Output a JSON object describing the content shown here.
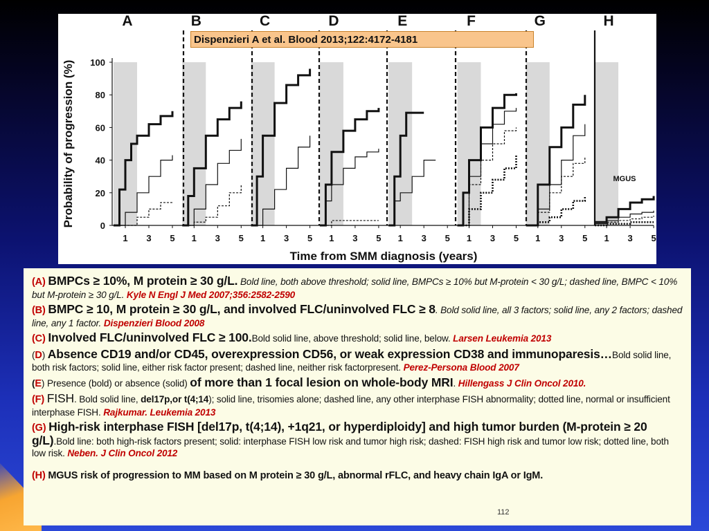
{
  "figure": {
    "panel_letters": [
      "A",
      "B",
      "C",
      "D",
      "E",
      "F",
      "G",
      "H"
    ],
    "citation": "Dispenzieri A et al. Blood 2013;122:4172-4181",
    "mgus_label": "MGUS"
  },
  "chart_data": {
    "type": "line",
    "xlabel": "Time from SMM diagnosis (years)",
    "ylabel": "Probability of progression (%)",
    "ylim": [
      0,
      100
    ],
    "y_ticks": [
      0,
      20,
      40,
      60,
      80,
      100
    ],
    "x_ticks": [
      1,
      3,
      5
    ],
    "xlim": [
      0,
      5
    ],
    "panels": [
      {
        "label": "A",
        "series": [
          {
            "style": "bold",
            "points": [
              [
                0,
                0
              ],
              [
                0.5,
                22
              ],
              [
                1,
                40
              ],
              [
                1.5,
                50
              ],
              [
                2,
                55
              ],
              [
                3,
                62
              ],
              [
                4,
                67
              ],
              [
                5,
                70
              ]
            ]
          },
          {
            "style": "solid",
            "points": [
              [
                0,
                0
              ],
              [
                1,
                8
              ],
              [
                2,
                20
              ],
              [
                3,
                30
              ],
              [
                4,
                40
              ],
              [
                5,
                43
              ]
            ]
          },
          {
            "style": "dashed",
            "points": [
              [
                0,
                0
              ],
              [
                2,
                5
              ],
              [
                3,
                10
              ],
              [
                4,
                14
              ],
              [
                5,
                14
              ]
            ]
          }
        ]
      },
      {
        "label": "B",
        "series": [
          {
            "style": "bold",
            "points": [
              [
                0,
                0
              ],
              [
                0.5,
                18
              ],
              [
                1,
                35
              ],
              [
                2,
                55
              ],
              [
                3,
                65
              ],
              [
                4,
                72
              ],
              [
                5,
                76
              ]
            ]
          },
          {
            "style": "solid",
            "points": [
              [
                0,
                0
              ],
              [
                1,
                10
              ],
              [
                2,
                25
              ],
              [
                3,
                38
              ],
              [
                4,
                46
              ],
              [
                5,
                53
              ]
            ]
          },
          {
            "style": "dashed",
            "points": [
              [
                0,
                0
              ],
              [
                1,
                2
              ],
              [
                2,
                5
              ],
              [
                3,
                12
              ],
              [
                4,
                20
              ],
              [
                5,
                25
              ]
            ]
          }
        ]
      },
      {
        "label": "C",
        "series": [
          {
            "style": "bold",
            "points": [
              [
                0,
                0
              ],
              [
                0.5,
                30
              ],
              [
                1,
                55
              ],
              [
                2,
                75
              ],
              [
                3,
                86
              ],
              [
                4,
                92
              ],
              [
                5,
                96
              ]
            ]
          },
          {
            "style": "solid",
            "points": [
              [
                0,
                0
              ],
              [
                1,
                10
              ],
              [
                2,
                22
              ],
              [
                3,
                35
              ],
              [
                4,
                48
              ],
              [
                5,
                55
              ]
            ]
          }
        ]
      },
      {
        "label": "D",
        "series": [
          {
            "style": "bold",
            "points": [
              [
                0,
                0
              ],
              [
                0.5,
                25
              ],
              [
                1,
                45
              ],
              [
                2,
                58
              ],
              [
                3,
                65
              ],
              [
                4,
                70
              ],
              [
                5,
                72
              ]
            ]
          },
          {
            "style": "solid",
            "points": [
              [
                0,
                0
              ],
              [
                0.5,
                15
              ],
              [
                1,
                25
              ],
              [
                2,
                35
              ],
              [
                3,
                42
              ],
              [
                4,
                45
              ],
              [
                5,
                47
              ]
            ]
          },
          {
            "style": "dashed",
            "points": [
              [
                0,
                0
              ],
              [
                1,
                3
              ],
              [
                2,
                3
              ],
              [
                5,
                3
              ]
            ]
          }
        ]
      },
      {
        "label": "E",
        "series": [
          {
            "style": "bold",
            "points": [
              [
                0,
                0
              ],
              [
                0.5,
                30
              ],
              [
                1,
                55
              ],
              [
                1.5,
                69
              ],
              [
                3,
                69
              ]
            ]
          },
          {
            "style": "solid",
            "points": [
              [
                0,
                0
              ],
              [
                0.5,
                15
              ],
              [
                1,
                20
              ],
              [
                2,
                30
              ],
              [
                3,
                40
              ],
              [
                4,
                40
              ]
            ]
          }
        ]
      },
      {
        "label": "F",
        "series": [
          {
            "style": "bold",
            "points": [
              [
                0,
                0
              ],
              [
                0.5,
                20
              ],
              [
                1,
                40
              ],
              [
                2,
                60
              ],
              [
                3,
                72
              ],
              [
                4,
                80
              ],
              [
                5,
                81
              ]
            ]
          },
          {
            "style": "solid",
            "points": [
              [
                0,
                0
              ],
              [
                1,
                30
              ],
              [
                2,
                50
              ],
              [
                3,
                62
              ],
              [
                4,
                70
              ],
              [
                5,
                72
              ]
            ]
          },
          {
            "style": "dashed",
            "points": [
              [
                0,
                0
              ],
              [
                1,
                25
              ],
              [
                2,
                40
              ],
              [
                3,
                50
              ],
              [
                4,
                58
              ],
              [
                5,
                60
              ]
            ]
          },
          {
            "style": "dotted",
            "points": [
              [
                0,
                0
              ],
              [
                1,
                10
              ],
              [
                2,
                20
              ],
              [
                3,
                28
              ],
              [
                4,
                35
              ],
              [
                5,
                43
              ]
            ]
          }
        ]
      },
      {
        "label": "G",
        "series": [
          {
            "style": "bold",
            "points": [
              [
                0,
                0
              ],
              [
                1,
                25
              ],
              [
                2,
                48
              ],
              [
                3,
                60
              ],
              [
                4,
                74
              ],
              [
                5,
                80
              ]
            ]
          },
          {
            "style": "solid",
            "points": [
              [
                0,
                0
              ],
              [
                1,
                10
              ],
              [
                2,
                25
              ],
              [
                3,
                40
              ],
              [
                4,
                55
              ],
              [
                5,
                62
              ]
            ]
          },
          {
            "style": "dashed",
            "points": [
              [
                0,
                0
              ],
              [
                1,
                8
              ],
              [
                2,
                20
              ],
              [
                3,
                30
              ],
              [
                4,
                38
              ],
              [
                5,
                42
              ]
            ]
          },
          {
            "style": "dotted",
            "points": [
              [
                0,
                0
              ],
              [
                1,
                2
              ],
              [
                2,
                5
              ],
              [
                3,
                10
              ],
              [
                4,
                15
              ],
              [
                5,
                18
              ]
            ]
          }
        ]
      },
      {
        "label": "H",
        "series": [
          {
            "style": "bold",
            "points": [
              [
                0,
                2
              ],
              [
                1,
                5
              ],
              [
                2,
                10
              ],
              [
                3,
                14
              ],
              [
                4,
                16
              ],
              [
                5,
                18
              ]
            ]
          },
          {
            "style": "solid",
            "points": [
              [
                0,
                1
              ],
              [
                1,
                3
              ],
              [
                2,
                5
              ],
              [
                3,
                7
              ],
              [
                4,
                8
              ],
              [
                5,
                9
              ]
            ]
          },
          {
            "style": "dashed",
            "points": [
              [
                0,
                1
              ],
              [
                1,
                2
              ],
              [
                2,
                3
              ],
              [
                3,
                4
              ],
              [
                4,
                5
              ],
              [
                5,
                6
              ]
            ]
          },
          {
            "style": "dotted",
            "points": [
              [
                0,
                0
              ],
              [
                1,
                1
              ],
              [
                2,
                1
              ],
              [
                3,
                2
              ],
              [
                4,
                2
              ],
              [
                5,
                2
              ]
            ]
          }
        ]
      }
    ]
  },
  "legend": {
    "A": {
      "label": "(A)",
      "head": "BMPCs ≥ 10%, M protein ≥ 30 g/L.",
      "desc": "Bold line, both above threshold; solid line, BMPCs ≥ 10% but M-protein < 30 g/L; dashed line, BMPC < 10% but M-protein ≥ 30 g/L.",
      "ref": "Kyle N Engl J Med 2007;356:2582-2590"
    },
    "B": {
      "label": "(B)",
      "head": "BMPC ≥ 10, M protein ≥ 30 g/L, and involved FLC/uninvolved FLC ≥ 8",
      "desc": ". Bold solid line, all 3 factors; solid line, any 2 factors; dashed line, any 1 factor.",
      "ref": "Dispenzieri Blood 2008"
    },
    "C": {
      "label": "(C)",
      "head": "Involved FLC/uninvolved FLC ≥ 100.",
      "desc": "Bold solid line, above threshold; solid line, below.",
      "ref": "Larsen Leukemia 2013"
    },
    "D": {
      "label_open": "(",
      "label_letter": "D",
      "label_close": ")",
      "head": "Absence CD19 and/or CD45, overexpression CD56, or weak expression CD38 and immunoparesis…",
      "desc": "Bold solid line, both risk factors; solid line, either risk factor present; dashed line, neither risk factorpresent.",
      "ref": "Perez-Persona Blood 2007"
    },
    "E": {
      "label_open": "(",
      "label_letter": "E",
      "label_close": ")",
      "pre": "Presence (bold) or absence (solid)",
      "head": "of more than 1 focal lesion on whole-body MRI",
      "post": ".",
      "ref": "Hillengass J Clin Oncol 2010."
    },
    "F": {
      "label": "(F)",
      "head": "FISH",
      "desc1": ". Bold solid line,",
      "bold_mid": "del17p,or t(4;14",
      "desc2": "); solid line, trisomies alone; dashed line, any other interphase FISH abnormality; dotted line, normal or insufficient interphase FISH.",
      "ref": "Rajkumar. Leukemia 2013"
    },
    "G": {
      "label": "(G)",
      "head": "High-risk interphase FISH [del17p, t(4;14), +1q21, or hyperdiploidy] and high tumor burden (M-protein ≥ 20 g/L)",
      "desc": ".Bold line: both high-risk factors present; solid: interphase FISH low risk and tumor high risk; dashed: FISH high risk and tumor low risk; dotted line, both low risk.",
      "ref": "Neben. J Clin Oncol 2012"
    },
    "H": {
      "label": "(H)",
      "head": "MGUS risk of progression to MM based on M protein ≥ 30 g/L, abnormal rFLC, and heavy chain IgA or IgM."
    },
    "slide_number": "112"
  }
}
